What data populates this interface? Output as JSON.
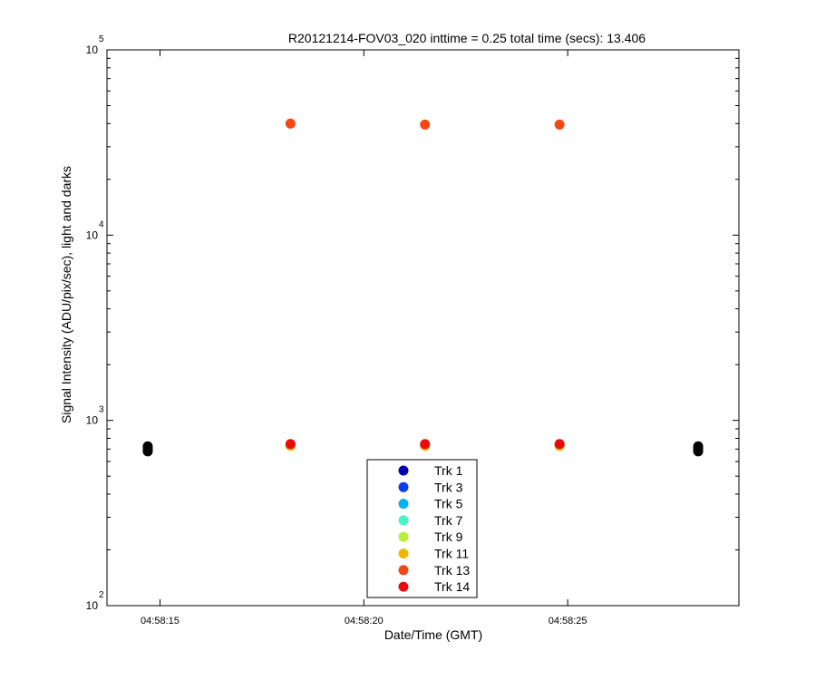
{
  "chart_data": {
    "type": "scatter",
    "title": "R20121214-FOV03_020 inttime = 0.25 total time (secs): 13.406",
    "xlabel": "Date/Time (GMT)",
    "ylabel": "Signal Intensity (ADU/pix/sec), light and darks",
    "yscale": "log",
    "xlim": [
      "04:58:13.7",
      "04:58:29.2"
    ],
    "ylim": [
      100,
      100000
    ],
    "x_ticks": [
      "04:58:15",
      "04:58:20",
      "04:58:25"
    ],
    "y_ticks": [
      {
        "base": "10",
        "exp": "2",
        "value": 100
      },
      {
        "base": "10",
        "exp": "3",
        "value": 1000
      },
      {
        "base": "10",
        "exp": "4",
        "value": 10000
      },
      {
        "base": "10",
        "exp": "5",
        "value": 100000
      }
    ],
    "grid": false,
    "legend_position": "bottom-center",
    "series": [
      {
        "name": "Trk 1",
        "color": "#0000b4",
        "points": [
          {
            "x": "04:58:18.2",
            "y": 730
          },
          {
            "x": "04:58:21.5",
            "y": 730
          },
          {
            "x": "04:58:24.8",
            "y": 730
          }
        ]
      },
      {
        "name": "Trk 3",
        "color": "#0a3cf0",
        "points": [
          {
            "x": "04:58:18.2",
            "y": 730
          },
          {
            "x": "04:58:21.5",
            "y": 730
          },
          {
            "x": "04:58:24.8",
            "y": 730
          }
        ]
      },
      {
        "name": "Trk 5",
        "color": "#00b4f0",
        "points": [
          {
            "x": "04:58:18.2",
            "y": 730
          },
          {
            "x": "04:58:21.5",
            "y": 730
          },
          {
            "x": "04:58:24.8",
            "y": 730
          }
        ]
      },
      {
        "name": "Trk 7",
        "color": "#46f5c8",
        "points": [
          {
            "x": "04:58:18.2",
            "y": 730
          },
          {
            "x": "04:58:21.5",
            "y": 730
          },
          {
            "x": "04:58:24.8",
            "y": 730
          }
        ]
      },
      {
        "name": "Trk 9",
        "color": "#b4f03c",
        "points": [
          {
            "x": "04:58:18.2",
            "y": 730
          },
          {
            "x": "04:58:21.5",
            "y": 730
          },
          {
            "x": "04:58:24.8",
            "y": 730
          }
        ]
      },
      {
        "name": "Trk 11",
        "color": "#f5b400",
        "points": [
          {
            "x": "04:58:18.2",
            "y": 730
          },
          {
            "x": "04:58:21.5",
            "y": 730
          },
          {
            "x": "04:58:24.8",
            "y": 730
          }
        ]
      },
      {
        "name": "Trk 13",
        "color": "#f54614",
        "points": [
          {
            "x": "04:58:18.2",
            "y": 40000
          },
          {
            "x": "04:58:21.5",
            "y": 39500
          },
          {
            "x": "04:58:24.8",
            "y": 39500
          }
        ]
      },
      {
        "name": "Trk 14",
        "color": "#eb0a0a",
        "points": [
          {
            "x": "04:58:18.2",
            "y": 745
          },
          {
            "x": "04:58:21.5",
            "y": 745
          },
          {
            "x": "04:58:24.8",
            "y": 745
          }
        ]
      }
    ],
    "dark_series": {
      "color": "#000000",
      "points": [
        {
          "x": "04:58:14.7",
          "y": 680
        },
        {
          "x": "04:58:14.7",
          "y": 695
        },
        {
          "x": "04:58:14.7",
          "y": 710
        },
        {
          "x": "04:58:14.7",
          "y": 725
        },
        {
          "x": "04:58:28.2",
          "y": 680
        },
        {
          "x": "04:58:28.2",
          "y": 695
        },
        {
          "x": "04:58:28.2",
          "y": 710
        },
        {
          "x": "04:58:28.2",
          "y": 725
        }
      ]
    }
  }
}
